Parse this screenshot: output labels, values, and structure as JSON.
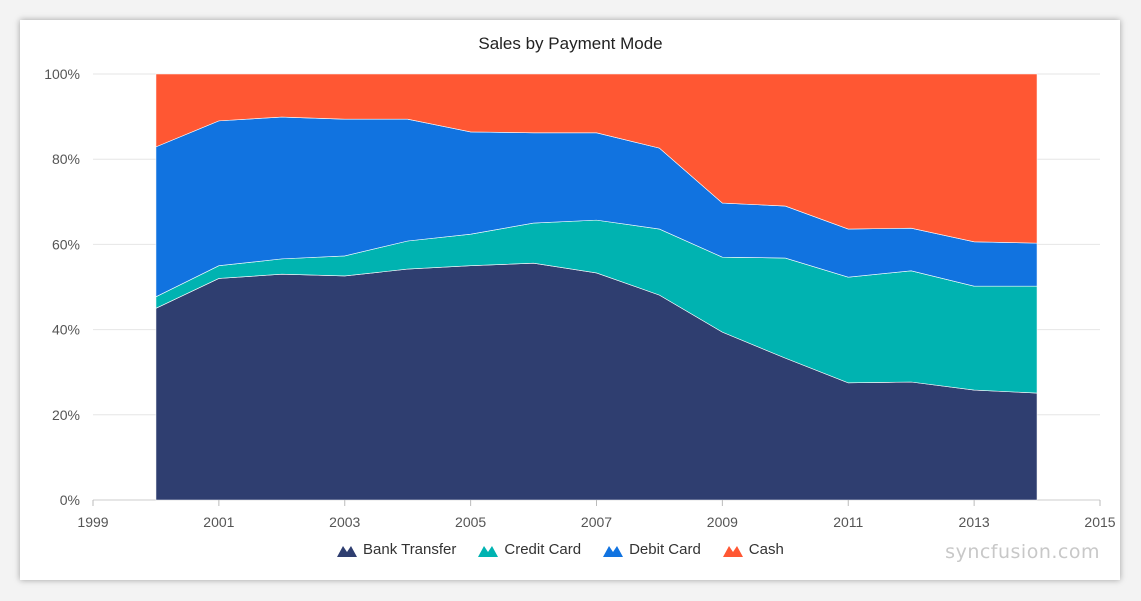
{
  "chart_data": {
    "type": "area",
    "stacked": "100%",
    "title": "Sales by Payment Mode",
    "x": [
      2000,
      2001,
      2002,
      2003,
      2004,
      2005,
      2006,
      2007,
      2008,
      2009,
      2010,
      2011,
      2012,
      2013,
      2014
    ],
    "xlim": [
      1999,
      2015
    ],
    "x_ticks": [
      "1999",
      "2001",
      "2003",
      "2005",
      "2007",
      "2009",
      "2011",
      "2013",
      "2015"
    ],
    "ylim": [
      0,
      100
    ],
    "y_ticks": [
      "0%",
      "20%",
      "40%",
      "60%",
      "80%",
      "100%"
    ],
    "grid": "horizontal",
    "legend_position": "bottom",
    "series": [
      {
        "name": "Bank Transfer",
        "color": "#2f3e70",
        "values": [
          45,
          52,
          53,
          52.6,
          54.2,
          55,
          55.6,
          53.3,
          48.1,
          39.4,
          33.3,
          27.5,
          27.7,
          25.8,
          25.1
        ]
      },
      {
        "name": "Credit Card",
        "color": "#00b3b1",
        "values": [
          2.7,
          3,
          3.6,
          4.7,
          6.6,
          7.4,
          9.4,
          12.4,
          15.5,
          17.6,
          23.5,
          24.8,
          26.1,
          24.4,
          25.1
        ]
      },
      {
        "name": "Debit Card",
        "color": "#1173e0",
        "values": [
          35.2,
          34,
          33.3,
          32.1,
          28.6,
          24,
          21.2,
          20.5,
          19,
          12.7,
          12.2,
          11.3,
          10,
          10.4,
          10.1
        ]
      },
      {
        "name": "Cash",
        "color": "#ff5733",
        "values": [
          17.1,
          11,
          10.1,
          10.6,
          10.6,
          13.6,
          13.8,
          13.8,
          17.4,
          30.3,
          31,
          36.4,
          36.2,
          39.4,
          39.7
        ]
      }
    ]
  },
  "watermark": "syncfusion.com"
}
